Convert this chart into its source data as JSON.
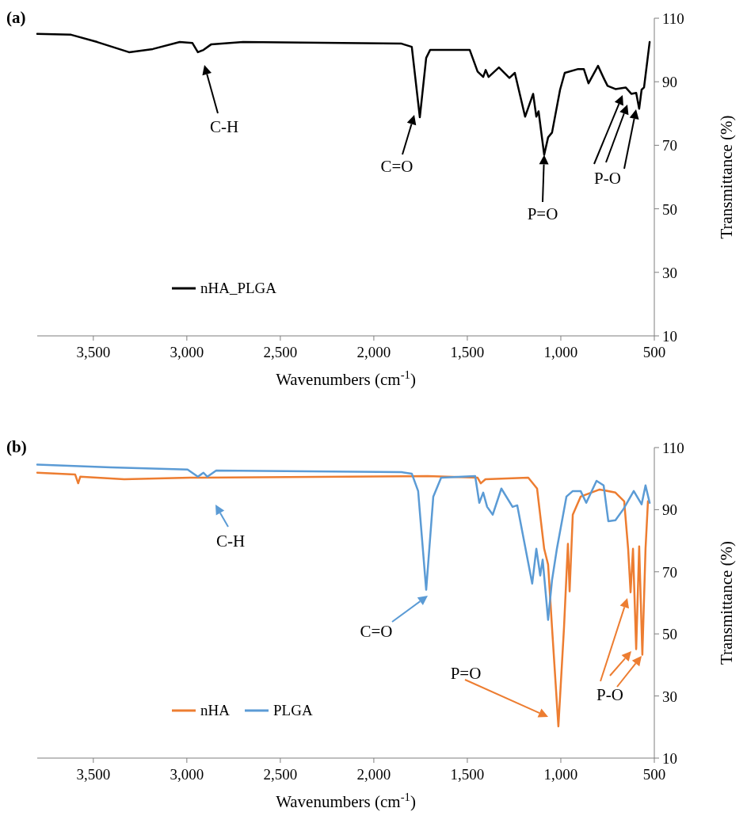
{
  "chart_data": [
    {
      "type": "line",
      "title": "(a)",
      "xlabel": "Wavenumbers (cm$^{-1}$)",
      "ylabel": "Transmittance (%)",
      "xlim": [
        3800,
        500
      ],
      "ylim": [
        10,
        110
      ],
      "xticks": [
        {
          "value": 3500,
          "label": "3,500"
        },
        {
          "value": 3000,
          "label": "3,000"
        },
        {
          "value": 2500,
          "label": "2,500"
        },
        {
          "value": 2000,
          "label": "2,000"
        },
        {
          "value": 1500,
          "label": "1,500"
        },
        {
          "value": 1000,
          "label": "1,000"
        },
        500
      ],
      "yticks": [
        10,
        30,
        50,
        70,
        90,
        110
      ],
      "grid": false,
      "legend": "bottom left",
      "marker": "none",
      "line_style": "solid",
      "series": [
        {
          "name": "nHA_PLGA",
          "color": "#000000",
          "x": [
            3800,
            3619,
            3479,
            3309,
            3182,
            3038,
            2970,
            2941,
            2911,
            2869,
            2699,
            1852,
            1797,
            1754,
            1720,
            1699,
            1487,
            1445,
            1415,
            1402,
            1386,
            1331,
            1275,
            1246,
            1191,
            1148,
            1131,
            1119,
            1089,
            1068,
            1047,
            1004,
            979,
            907,
            877,
            852,
            801,
            767,
            750,
            708,
            653,
            623,
            597,
            581,
            568,
            555,
            525
          ],
          "values": [
            105.1,
            104.8,
            102.5,
            99.3,
            100.3,
            102.5,
            102.2,
            99.3,
            100,
            101.8,
            102.5,
            102,
            101,
            78.8,
            97.5,
            100,
            100,
            93.2,
            91.5,
            93.7,
            91.5,
            94.5,
            91.2,
            92.8,
            79,
            86.2,
            79,
            80.7,
            67,
            72.5,
            74,
            87.5,
            92.8,
            94,
            94,
            89.5,
            95,
            90.7,
            88.7,
            87.7,
            88.2,
            86.2,
            86.5,
            81.5,
            87.5,
            88.2,
            102.5
          ]
        }
      ],
      "annotations": [
        "C-H",
        "C=O",
        {
          "text": "P=O",
          "x": 1089,
          "y": 67
        },
        "P-O"
      ]
    },
    {
      "type": "line",
      "title": "(b)",
      "xlabel": "Wavenumbers (cm$^{-1}$)",
      "ylabel": "Transmittance (%)",
      "xlim": [
        3800,
        500
      ],
      "ylim": [
        10,
        110
      ],
      "xticks": [
        {
          "value": 3500,
          "label": "3,500"
        },
        {
          "value": 3000,
          "label": "3,000"
        },
        {
          "value": 2500,
          "label": "2,500"
        },
        {
          "value": 2000,
          "label": "2,000"
        },
        {
          "value": 1500,
          "label": "1,500"
        },
        {
          "value": 1000,
          "label": "1,000"
        },
        500
      ],
      "yticks": [
        10,
        30,
        50,
        70,
        90,
        110
      ],
      "grid": false,
      "legend": "bottom left",
      "marker": "none",
      "line_style": "solid",
      "series": [
        {
          "name": "nHA",
          "color": "#ed7d31",
          "x": [
            3800,
            3597,
            3581,
            3570,
            3335,
            2983,
            1712,
            1445,
            1428,
            1403,
            1174,
            1127,
            1089,
            1068,
            1047,
            1013,
            983,
            962,
            953,
            936,
            894,
            792,
            708,
            661,
            640,
            627,
            614,
            597,
            581,
            564,
            547,
            534
          ],
          "values": [
            101.9,
            101.3,
            98.5,
            100.6,
            99.8,
            100.3,
            100.8,
            100.3,
            98.5,
            99.8,
            100.3,
            96.8,
            77.4,
            72.3,
            52,
            20.2,
            52,
            79,
            63.7,
            88.4,
            94.2,
            96.5,
            95.5,
            92.7,
            77.4,
            63.4,
            77.4,
            45.1,
            78.2,
            43.3,
            77.4,
            92.7
          ]
        },
        {
          "name": "PLGA",
          "color": "#5b9bd5",
          "x": [
            3800,
            3407,
            2996,
            2941,
            2911,
            2890,
            2843,
            1852,
            1797,
            1763,
            1720,
            1682,
            1640,
            1458,
            1436,
            1415,
            1394,
            1364,
            1318,
            1258,
            1233,
            1191,
            1153,
            1131,
            1110,
            1097,
            1068,
            1047,
            1021,
            970,
            936,
            894,
            864,
            809,
            771,
            746,
            708,
            665,
            610,
            568,
            547,
            525
          ],
          "values": [
            104.5,
            103.6,
            102.9,
            100.6,
            101.9,
            100.6,
            102.6,
            102.1,
            101.6,
            96,
            64.2,
            94.2,
            100.3,
            100.8,
            92.2,
            95.5,
            90.9,
            88.4,
            96.8,
            90.9,
            91.4,
            78.2,
            66.2,
            77.4,
            68.8,
            73.9,
            54.5,
            67.3,
            77.4,
            94.2,
            96,
            96,
            92.2,
            99.3,
            97.8,
            86.3,
            86.6,
            90.2,
            96,
            91.7,
            97.8,
            92.2
          ]
        }
      ],
      "annotations": [
        "C-H",
        "C=O",
        "P=O",
        "P-O"
      ]
    }
  ]
}
